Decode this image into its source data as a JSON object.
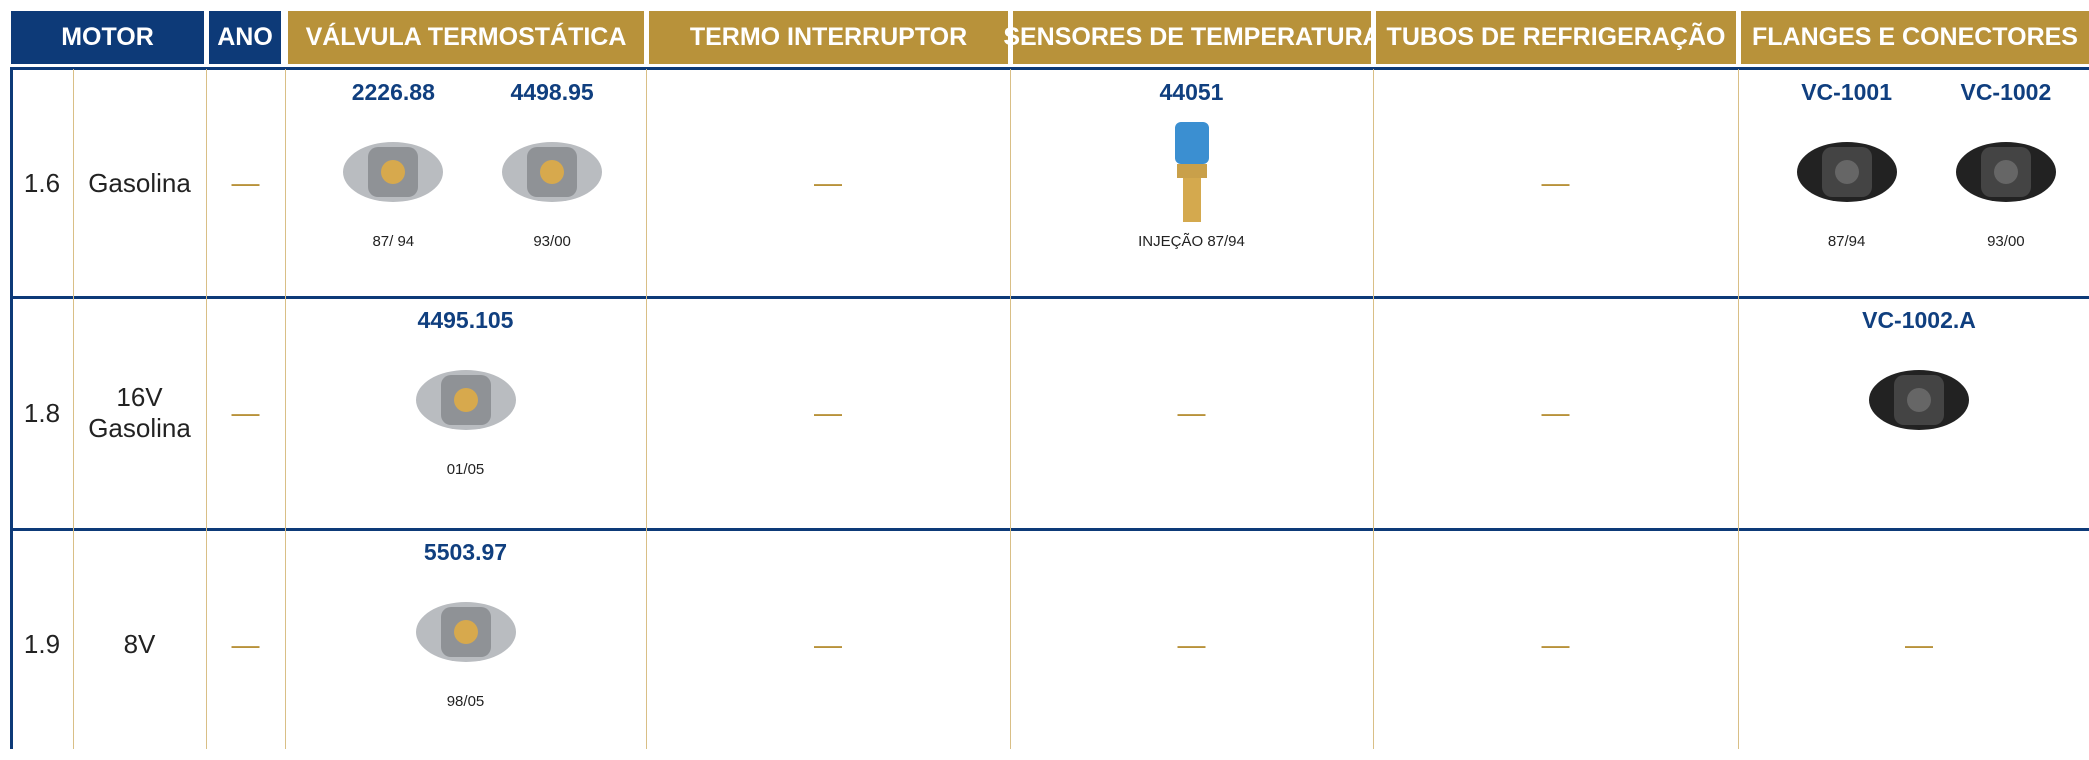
{
  "header": {
    "columns": [
      "MOTOR",
      "ANO",
      "VÁLVULA TERMOSTÁTICA",
      "TERMO INTERRUPTOR",
      "SENSORES DE TEMPERATURA",
      "TUBOS DE REFRIGERAÇÃO",
      "FLANGES E CONECTORES"
    ]
  },
  "table": {
    "rows": [
      {
        "motor": "1.6",
        "fuel": [
          "Gasolina"
        ],
        "ano": "—",
        "cells": [
          [
            {
              "code": "2226.88",
              "note": "87/ 94"
            },
            {
              "code": "4498.95",
              "note": "93/00"
            }
          ],
          "—",
          [
            {
              "code": "44051",
              "note": "INJEÇÃO 87/94"
            }
          ],
          "—",
          [
            {
              "code": "VC-1001",
              "note": "87/94"
            },
            {
              "code": "VC-1002",
              "note": "93/00"
            }
          ]
        ]
      },
      {
        "motor": "1.8",
        "fuel": [
          "16V",
          "Gasolina"
        ],
        "ano": "—",
        "cells": [
          [
            {
              "code": "4495.105",
              "note": "01/05"
            }
          ],
          "—",
          "—",
          "—",
          [
            {
              "code": "VC-1002.A"
            }
          ]
        ]
      },
      {
        "motor": "1.9",
        "fuel": [
          "8V"
        ],
        "ano": "—",
        "cells": [
          [
            {
              "code": "5503.97",
              "note": "98/05"
            }
          ],
          "—",
          "—",
          "—",
          "—"
        ]
      }
    ]
  }
}
